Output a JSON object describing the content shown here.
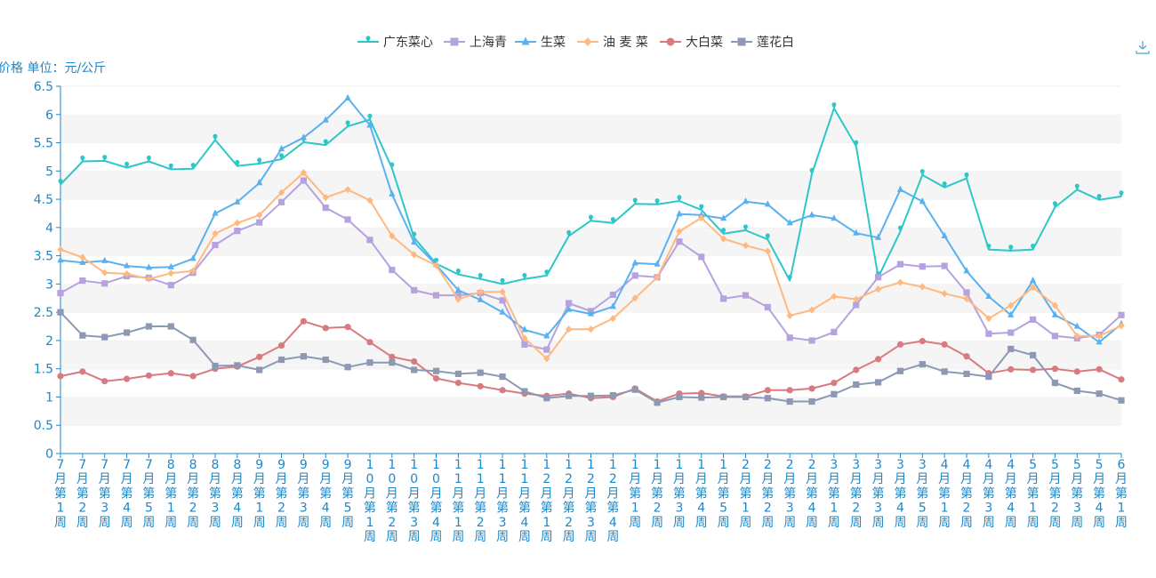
{
  "chart_data": {
    "type": "line",
    "ylabel": "价格 单位：元/公斤",
    "ylim": [
      0,
      6.5
    ],
    "yticks": [
      "0",
      "0.5",
      "1",
      "1.5",
      "2",
      "2.5",
      "3",
      "3.5",
      "4",
      "4.5",
      "5",
      "5.5",
      "6",
      "6.5"
    ],
    "legend_position": "top-center",
    "grid": "horizontal",
    "categories": [
      "7月第1周",
      "7月第2周",
      "7月第3周",
      "7月第4周",
      "7月第5周",
      "8月第1周",
      "8月第2周",
      "8月第3周",
      "8月第4周",
      "9月第1周",
      "9月第2周",
      "9月第3周",
      "9月第4周",
      "9月第5周",
      "10月第1周",
      "10月第2周",
      "10月第3周",
      "10月第4周",
      "11月第1周",
      "11月第2周",
      "11月第3周",
      "11月第4周",
      "12月第1周",
      "12月第2周",
      "12月第3周",
      "12月第4周",
      "1月第1周",
      "1月第2周",
      "1月第3周",
      "1月第4周",
      "1月第5周",
      "2月第1周",
      "2月第2周",
      "2月第3周",
      "2月第4周",
      "3月第1周",
      "3月第2周",
      "3月第3周",
      "3月第4周",
      "3月第5周",
      "4月第1周",
      "4月第2周",
      "4月第3周",
      "4月第4周",
      "5月第1周",
      "5月第2周",
      "5月第3周",
      "5月第4周",
      "6月第1周"
    ],
    "series": [
      {
        "name": "广东菜心",
        "color": "#2ec7c9",
        "marker": "pin",
        "values": [
          4.76,
          5.17,
          5.18,
          5.06,
          5.17,
          5.03,
          5.04,
          5.55,
          5.09,
          5.13,
          5.21,
          5.51,
          5.46,
          5.79,
          5.91,
          5.05,
          3.82,
          3.36,
          3.17,
          3.09,
          3.0,
          3.09,
          3.15,
          3.85,
          4.12,
          4.08,
          4.42,
          4.41,
          4.47,
          4.31,
          3.89,
          3.95,
          3.79,
          3.06,
          4.95,
          6.11,
          5.44,
          3.12,
          3.93,
          4.93,
          4.71,
          4.87,
          3.61,
          3.59,
          3.61,
          4.36,
          4.67,
          4.49,
          4.55
        ]
      },
      {
        "name": "上海青",
        "color": "#b6a2de",
        "marker": "square",
        "values": [
          2.84,
          3.06,
          3.01,
          3.14,
          3.11,
          2.98,
          3.2,
          3.69,
          3.94,
          4.09,
          4.45,
          4.83,
          4.35,
          4.14,
          3.78,
          3.25,
          2.89,
          2.8,
          2.8,
          2.84,
          2.71,
          1.93,
          1.84,
          2.66,
          2.52,
          2.81,
          3.15,
          3.12,
          3.75,
          3.48,
          2.74,
          2.8,
          2.59,
          2.05,
          2.0,
          2.15,
          2.63,
          3.12,
          3.35,
          3.31,
          3.32,
          2.85,
          2.12,
          2.14,
          2.37,
          2.08,
          2.04,
          2.1,
          2.45
        ]
      },
      {
        "name": "生菜",
        "color": "#5ab1ef",
        "marker": "triangle",
        "values": [
          3.42,
          3.38,
          3.41,
          3.32,
          3.29,
          3.3,
          3.45,
          4.25,
          4.45,
          4.79,
          5.39,
          5.59,
          5.9,
          6.29,
          5.81,
          4.59,
          3.74,
          3.34,
          2.89,
          2.72,
          2.5,
          2.19,
          2.08,
          2.55,
          2.47,
          2.6,
          3.37,
          3.35,
          4.24,
          4.22,
          4.16,
          4.46,
          4.41,
          4.08,
          4.22,
          4.16,
          3.9,
          3.82,
          4.67,
          4.46,
          3.85,
          3.23,
          2.78,
          2.45,
          3.06,
          2.45,
          2.25,
          1.97,
          2.29
        ]
      },
      {
        "name": "油 麦 菜",
        "color": "#ffb980",
        "marker": "diamond",
        "values": [
          3.61,
          3.47,
          3.2,
          3.18,
          3.09,
          3.19,
          3.23,
          3.89,
          4.08,
          4.22,
          4.62,
          4.97,
          4.53,
          4.67,
          4.48,
          3.85,
          3.52,
          3.33,
          2.73,
          2.86,
          2.86,
          2.04,
          1.68,
          2.2,
          2.2,
          2.39,
          2.75,
          3.12,
          3.93,
          4.17,
          3.8,
          3.68,
          3.58,
          2.44,
          2.54,
          2.78,
          2.73,
          2.91,
          3.03,
          2.95,
          2.83,
          2.74,
          2.39,
          2.62,
          2.94,
          2.62,
          2.08,
          2.08,
          2.26
        ]
      },
      {
        "name": "大白菜",
        "color": "#d87a80",
        "marker": "circle",
        "values": [
          1.37,
          1.45,
          1.28,
          1.32,
          1.38,
          1.42,
          1.37,
          1.5,
          1.54,
          1.71,
          1.91,
          2.34,
          2.22,
          2.24,
          1.97,
          1.71,
          1.63,
          1.33,
          1.25,
          1.19,
          1.12,
          1.06,
          1.02,
          1.06,
          0.98,
          1.0,
          1.15,
          0.92,
          1.06,
          1.07,
          1.01,
          1.01,
          1.12,
          1.12,
          1.15,
          1.25,
          1.48,
          1.67,
          1.93,
          1.99,
          1.93,
          1.72,
          1.42,
          1.49,
          1.48,
          1.5,
          1.45,
          1.49,
          1.31
        ]
      },
      {
        "name": "莲花白",
        "color": "#8d98b3",
        "marker": "square",
        "values": [
          2.5,
          2.09,
          2.06,
          2.14,
          2.25,
          2.25,
          2.01,
          1.55,
          1.56,
          1.48,
          1.66,
          1.72,
          1.66,
          1.53,
          1.61,
          1.61,
          1.48,
          1.46,
          1.41,
          1.43,
          1.36,
          1.1,
          0.98,
          1.02,
          1.02,
          1.03,
          1.13,
          0.9,
          1.0,
          0.99,
          1.0,
          1.0,
          0.98,
          0.92,
          0.92,
          1.05,
          1.22,
          1.26,
          1.46,
          1.58,
          1.45,
          1.41,
          1.36,
          1.85,
          1.74,
          1.25,
          1.11,
          1.06,
          0.94
        ]
      }
    ]
  }
}
